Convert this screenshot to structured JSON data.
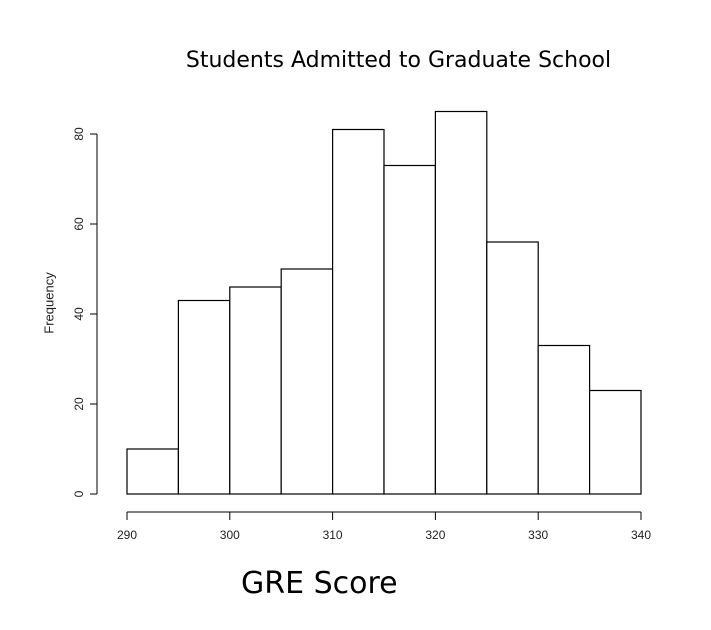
{
  "chart_data": {
    "type": "bar",
    "title": "Students Admitted to Graduate School",
    "xlabel": "GRE Score",
    "ylabel": "Frequency",
    "bins": [
      {
        "start": 290,
        "end": 295,
        "value": 10
      },
      {
        "start": 295,
        "end": 300,
        "value": 43
      },
      {
        "start": 300,
        "end": 305,
        "value": 46
      },
      {
        "start": 305,
        "end": 310,
        "value": 50
      },
      {
        "start": 310,
        "end": 315,
        "value": 81
      },
      {
        "start": 315,
        "end": 320,
        "value": 73
      },
      {
        "start": 320,
        "end": 325,
        "value": 85
      },
      {
        "start": 325,
        "end": 330,
        "value": 56
      },
      {
        "start": 330,
        "end": 335,
        "value": 33
      },
      {
        "start": 335,
        "end": 340,
        "value": 23
      }
    ],
    "xticks": [
      "290",
      "300",
      "310",
      "320",
      "330",
      "340"
    ],
    "yticks": [
      "0",
      "20",
      "40",
      "60",
      "80"
    ],
    "xlim": [
      290,
      340
    ],
    "ylim": [
      0,
      85
    ],
    "grid": false,
    "bar_fill": "#ffffff",
    "bar_stroke": "#000000"
  }
}
